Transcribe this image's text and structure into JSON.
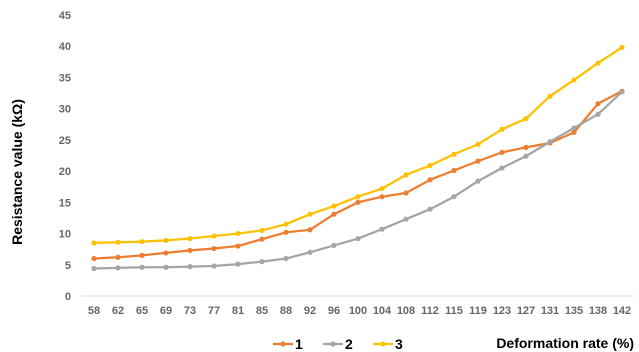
{
  "chart_data": {
    "type": "line",
    "xlabel": "Deformation rate (%)",
    "ylabel": "Resistance value (kΩ)",
    "categories": [
      "58",
      "62",
      "65",
      "69",
      "73",
      "77",
      "81",
      "85",
      "88",
      "92",
      "96",
      "100",
      "104",
      "108",
      "112",
      "115",
      "119",
      "123",
      "127",
      "131",
      "135",
      "138",
      "142"
    ],
    "ylim": [
      0,
      45
    ],
    "yticks": [
      0,
      5,
      10,
      15,
      20,
      25,
      30,
      35,
      40,
      45
    ],
    "grid": false,
    "legend_position": "bottom",
    "series": [
      {
        "name": "1",
        "color": "#ED7D31",
        "values": [
          6.0,
          6.2,
          6.5,
          6.9,
          7.3,
          7.6,
          8.0,
          9.1,
          10.2,
          10.6,
          13.1,
          15.0,
          15.9,
          16.5,
          18.6,
          20.1,
          21.6,
          23.0,
          23.8,
          24.5,
          26.2,
          30.8,
          32.8
        ]
      },
      {
        "name": "2",
        "color": "#A5A5A5",
        "values": [
          4.4,
          4.5,
          4.6,
          4.6,
          4.7,
          4.8,
          5.1,
          5.5,
          6.0,
          7.0,
          8.1,
          9.2,
          10.7,
          12.3,
          13.9,
          15.9,
          18.4,
          20.5,
          22.4,
          24.7,
          26.9,
          29.1,
          32.7
        ]
      },
      {
        "name": "3",
        "color": "#FFC000",
        "values": [
          8.5,
          8.6,
          8.7,
          8.9,
          9.2,
          9.6,
          10.0,
          10.5,
          11.5,
          13.1,
          14.4,
          15.9,
          17.2,
          19.4,
          20.9,
          22.7,
          24.3,
          26.7,
          28.4,
          32.0,
          34.6,
          37.3,
          39.8
        ]
      }
    ]
  }
}
